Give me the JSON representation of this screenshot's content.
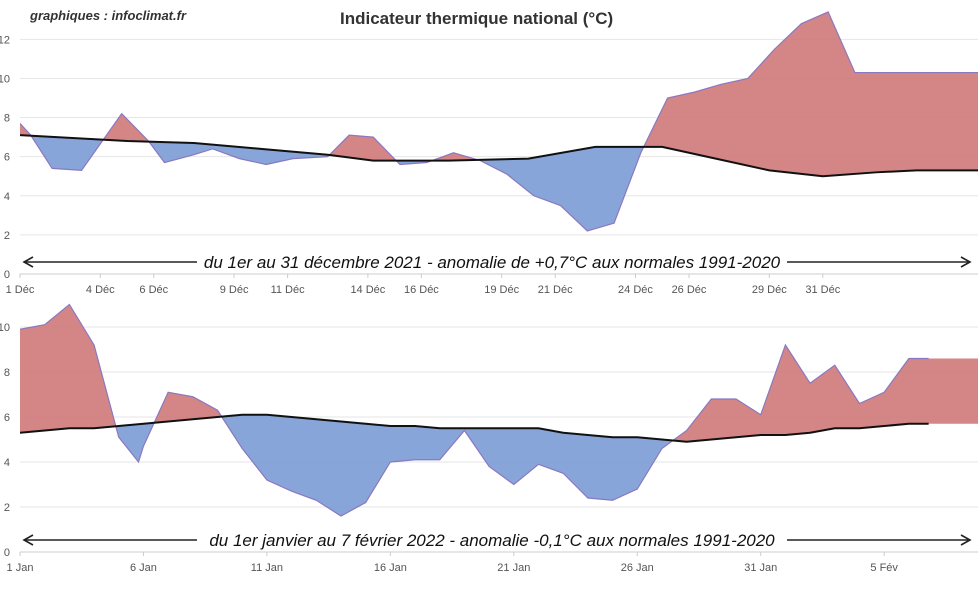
{
  "credit": "graphiques : infoclimat.fr",
  "title": "Indicateur thermique national (°C)",
  "colors": {
    "above": "#d07c7c",
    "below": "#7e9dd6",
    "normal_line": "#111111",
    "grid": "#e6e6e6"
  },
  "chart_data": [
    {
      "type": "area",
      "annotation": "du 1er au 31 décembre 2021 - anomalie de +0,7°C aux normales 1991-2020",
      "ylim": [
        0,
        13.5
      ],
      "yticks": [
        0,
        2,
        4,
        6,
        8,
        10,
        12
      ],
      "x_tick_labels": [
        "1 Déc",
        "4 Déc",
        "6 Déc",
        "9 Déc",
        "11 Déc",
        "14 Déc",
        "16 Déc",
        "19 Déc",
        "21 Déc",
        "24 Déc",
        "26 Déc",
        "29 Déc",
        "31 Déc"
      ],
      "x_tick_days": [
        1,
        4,
        6,
        9,
        11,
        14,
        16,
        19,
        21,
        24,
        26,
        29,
        31
      ],
      "x_range": [
        1,
        36.8
      ],
      "series": [
        {
          "key": "observed",
          "x": [
            1,
            1.4,
            2.2,
            3.3,
            4.8,
            5.8,
            6.4,
            7.5,
            8.2,
            9.2,
            10.2,
            11.2,
            12.5,
            13.3,
            14.2,
            15.2,
            16.2,
            17.2,
            18.2,
            19.2,
            20.2,
            21.2,
            22.2,
            23.2,
            24.2,
            25.2,
            26.2,
            27.2,
            28.2,
            29.2,
            30.2,
            31.2,
            32.2,
            33.2,
            34.2,
            35.2,
            36.2,
            36.8
          ],
          "values": [
            7.7,
            7.1,
            5.4,
            5.3,
            8.2,
            6.8,
            5.7,
            6.1,
            6.4,
            5.9,
            5.6,
            5.9,
            6.0,
            7.1,
            7.0,
            5.6,
            5.7,
            6.2,
            5.8,
            5.1,
            4.0,
            3.5,
            2.2,
            2.6,
            6.2,
            9.0,
            9.3,
            9.7,
            10.0,
            11.5,
            12.8,
            13.4,
            10.3,
            10.3,
            10.3,
            10.3,
            10.3,
            10.3
          ]
        },
        {
          "key": "normal",
          "x": [
            1,
            5,
            7.5,
            10,
            12.5,
            14.2,
            17,
            20,
            22.5,
            25,
            27,
            29,
            31,
            33,
            34.5,
            36.8
          ],
          "values": [
            7.1,
            6.8,
            6.7,
            6.4,
            6.1,
            5.8,
            5.8,
            5.9,
            6.5,
            6.5,
            5.9,
            5.3,
            5.0,
            5.2,
            5.3,
            5.3
          ]
        }
      ]
    },
    {
      "type": "area",
      "annotation": "du 1er janvier au 7 février 2022 - anomalie -0,1°C aux normales 1991-2020",
      "ylim": [
        0,
        11.2
      ],
      "yticks": [
        0,
        2,
        4,
        6,
        8,
        10
      ],
      "x_tick_labels": [
        "1 Jan",
        "6 Jan",
        "11 Jan",
        "16 Jan",
        "21 Jan",
        "26 Jan",
        "31 Jan",
        "5 Fév"
      ],
      "x_tick_days": [
        1,
        6,
        11,
        16,
        21,
        26,
        31,
        36
      ],
      "x_range": [
        1,
        39.8
      ],
      "series": [
        {
          "key": "observed",
          "x": [
            1,
            2,
            3,
            4,
            5,
            5.8,
            6,
            7,
            8,
            9,
            10,
            11,
            12,
            13,
            14,
            15,
            16,
            17,
            18,
            19,
            20,
            21,
            22,
            23,
            24,
            25,
            26,
            27,
            28,
            29,
            30,
            31,
            32,
            33,
            34,
            35,
            36,
            37,
            37.8
          ],
          "values": [
            9.9,
            10.1,
            11.0,
            9.2,
            5.1,
            4.0,
            4.7,
            7.1,
            6.9,
            6.3,
            4.6,
            3.2,
            2.7,
            2.3,
            1.6,
            2.2,
            4.0,
            4.1,
            4.1,
            5.4,
            3.8,
            3.0,
            3.9,
            3.5,
            2.4,
            2.3,
            2.8,
            4.6,
            5.4,
            6.8,
            6.8,
            6.1,
            9.2,
            7.5,
            8.3,
            6.6,
            7.1,
            8.6,
            8.6
          ]
        },
        {
          "key": "normal",
          "x": [
            1,
            2,
            3,
            4,
            5,
            6,
            7,
            8,
            9,
            10,
            11,
            12,
            13,
            14,
            15,
            16,
            17,
            18,
            19,
            20,
            21,
            22,
            23,
            24,
            25,
            26,
            27,
            28,
            29,
            30,
            31,
            32,
            33,
            34,
            35,
            36,
            37,
            37.8
          ],
          "values": [
            5.3,
            5.4,
            5.5,
            5.5,
            5.6,
            5.7,
            5.8,
            5.9,
            6.0,
            6.1,
            6.1,
            6.0,
            5.9,
            5.8,
            5.7,
            5.6,
            5.6,
            5.5,
            5.5,
            5.5,
            5.5,
            5.5,
            5.3,
            5.2,
            5.1,
            5.1,
            5.0,
            4.9,
            5.0,
            5.1,
            5.2,
            5.2,
            5.3,
            5.5,
            5.5,
            5.6,
            5.7,
            5.7
          ]
        }
      ]
    }
  ]
}
